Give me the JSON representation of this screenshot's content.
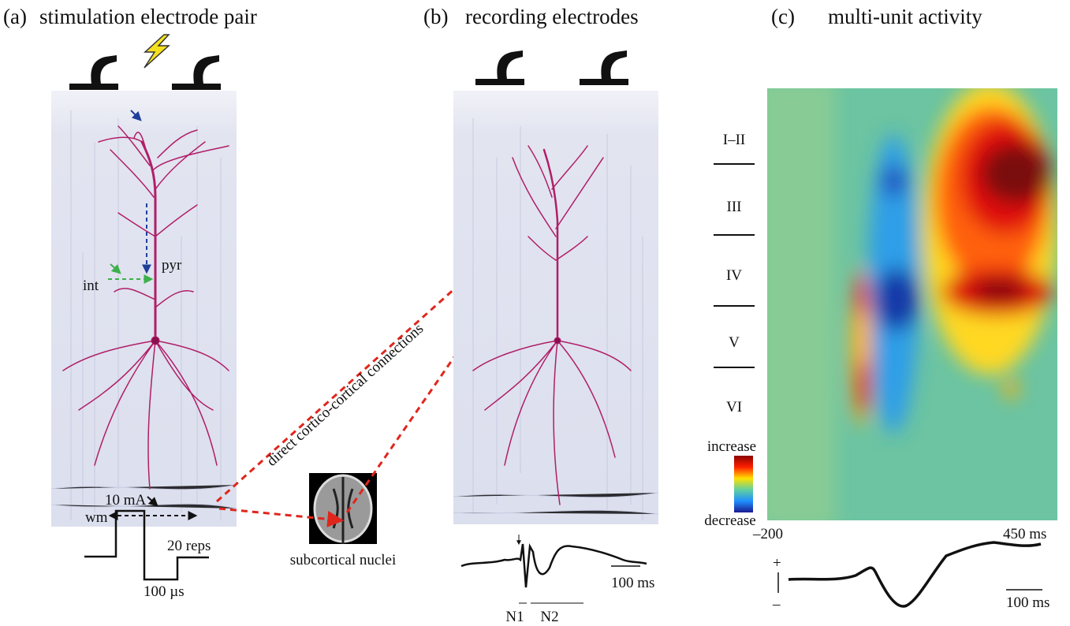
{
  "panel_a": {
    "label": "(a)",
    "title": "stimulation electrode pair",
    "pyr": "pyr",
    "int": "int",
    "wm": "wm",
    "amplitude": "10 mA",
    "reps": "20 reps",
    "duration": "100 µs"
  },
  "mri": {
    "caption": "subcortical nuclei"
  },
  "pathway": {
    "label": "direct cortico-cortical connections"
  },
  "panel_b": {
    "label": "(b)",
    "title": "recording electrodes",
    "scale": "100 ms",
    "n1": "N1",
    "n2": "N2"
  },
  "panel_c": {
    "label": "(c)",
    "title": "multi-unit activity",
    "layers": [
      "I–II",
      "III",
      "IV",
      "V",
      "VI"
    ],
    "colorbar": {
      "max": "increase",
      "min": "decrease"
    },
    "x_start": "–200",
    "x_end": "450 ms",
    "plus": "+",
    "minus": "–",
    "scale": "100 ms"
  }
}
